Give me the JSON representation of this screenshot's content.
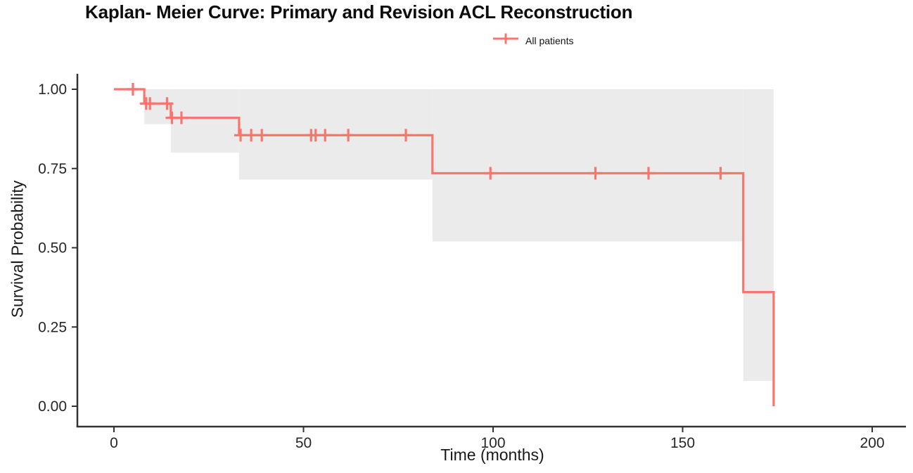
{
  "chart_data": {
    "type": "line",
    "subtype": "kaplan-meier-step-curve",
    "title": "Kaplan- Meier Curve: Primary and Revision ACL Reconstruction",
    "xlabel": "Time (months)",
    "ylabel": "Survival Probability",
    "xlim": [
      0,
      200
    ],
    "ylim": [
      0,
      1
    ],
    "xticks": [
      0,
      50,
      100,
      150,
      200
    ],
    "xtick_labels": [
      "0",
      "50",
      "100",
      "150",
      "200"
    ],
    "yticks": [
      0.0,
      0.25,
      0.5,
      0.75,
      1.0
    ],
    "ytick_labels": [
      "0.00",
      "0.25",
      "0.50",
      "0.75",
      "1.00"
    ],
    "grid": false,
    "legend_position": "top-center",
    "legend": [
      {
        "name": "All patients",
        "color": "#f8766d"
      }
    ],
    "axis_color": "#333333",
    "tick_label_color": "#262626",
    "series": [
      {
        "name": "All patients",
        "color": "#f8766d",
        "ci_color": "#ebebeb",
        "step_points": [
          [
            0,
            1.0
          ],
          [
            8,
            1.0
          ],
          [
            8,
            0.955
          ],
          [
            15,
            0.955
          ],
          [
            15,
            0.91
          ],
          [
            33,
            0.91
          ],
          [
            33,
            0.855
          ],
          [
            84,
            0.855
          ],
          [
            84,
            0.735
          ],
          [
            166,
            0.735
          ],
          [
            166,
            0.36
          ],
          [
            174,
            0.36
          ],
          [
            174,
            0.0
          ]
        ],
        "censor_marks": [
          [
            5,
            1.0
          ],
          [
            8.5,
            0.955
          ],
          [
            9.5,
            0.955
          ],
          [
            14,
            0.955
          ],
          [
            15.3,
            0.91
          ],
          [
            17.8,
            0.91
          ],
          [
            33.4,
            0.855
          ],
          [
            36.2,
            0.855
          ],
          [
            39,
            0.855
          ],
          [
            52,
            0.855
          ],
          [
            53.2,
            0.855
          ],
          [
            55.7,
            0.855
          ],
          [
            61.8,
            0.855
          ],
          [
            77,
            0.855
          ],
          [
            99.3,
            0.735
          ],
          [
            127,
            0.735
          ],
          [
            141,
            0.735
          ],
          [
            160,
            0.735
          ]
        ],
        "ci_bands": [
          {
            "t0": 8,
            "t1": 15,
            "lower": 0.89,
            "upper": 1.0
          },
          {
            "t0": 15,
            "t1": 33,
            "lower": 0.8,
            "upper": 1.0
          },
          {
            "t0": 33,
            "t1": 84,
            "lower": 0.715,
            "upper": 1.0
          },
          {
            "t0": 84,
            "t1": 166,
            "lower": 0.52,
            "upper": 1.0
          },
          {
            "t0": 166,
            "t1": 174,
            "lower": 0.08,
            "upper": 1.0
          }
        ]
      }
    ]
  }
}
